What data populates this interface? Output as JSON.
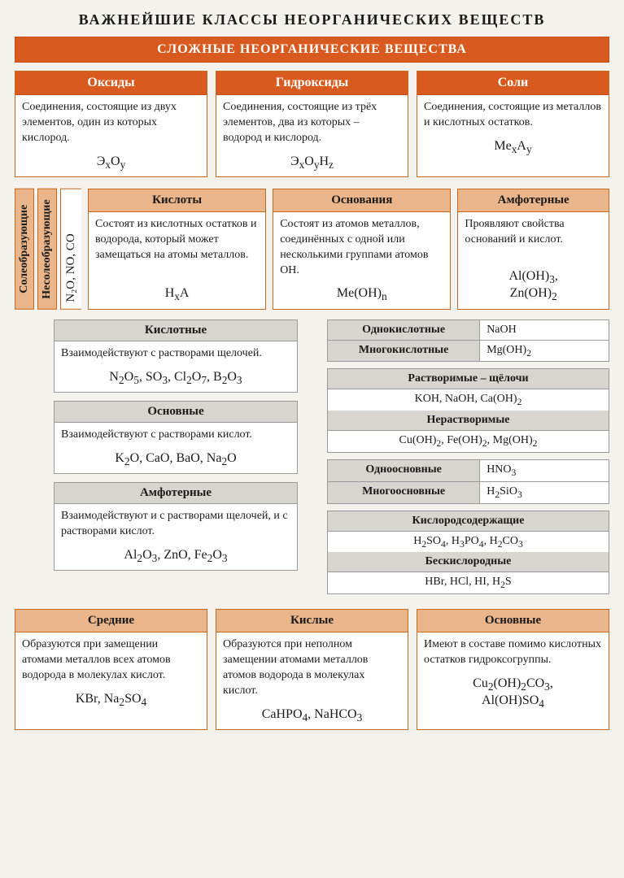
{
  "colors": {
    "accent": "#d85a1f",
    "accent_light": "#eab58a",
    "grey_hdr": "#d8d4d0",
    "border": "#c7691d",
    "bg": "#f5f2ee"
  },
  "title": "ВАЖНЕЙШИЕ КЛАССЫ НЕОРГАНИЧЕСКИХ ВЕЩЕСТВ",
  "main_header": "СЛОЖНЫЕ НЕОРГАНИЧЕСКИЕ ВЕЩЕСТВА",
  "top": [
    {
      "title": "Оксиды",
      "text": "Соединения, состоящие из двух элементов, один из которых кислород.",
      "formula": "Э<sub>x</sub>O<sub>y</sub>"
    },
    {
      "title": "Гидроксиды",
      "text": "Соединения, состоящие из трёх элементов, два из которых – водород и кислород.",
      "formula": "Э<sub>x</sub>O<sub>y</sub>H<sub>z</sub>"
    },
    {
      "title": "Соли",
      "text": "Соединения, состоящие из металлов и кислотных остатков.",
      "formula": "Me<sub>x</sub>A<sub>y</sub>"
    }
  ],
  "vtabs": {
    "left": "Солеобразующие",
    "right_label": "Несолеобразующие",
    "right_content": "N₂O, NO, CO"
  },
  "mid": [
    {
      "title": "Кислоты",
      "text": "Состоят из кислотных остатков и водорода, который может замещаться на атомы металлов.",
      "formula": "H<sub>x</sub>A"
    },
    {
      "title": "Основания",
      "text": "Состоят из атомов металлов, соединённых с одной или несколькими группами атомов OH.",
      "formula": "Me(OH)<sub>n</sub>"
    },
    {
      "title": "Амфотерные",
      "text": "Проявляют свойства оснований и кислот.",
      "formula": "Al(OH)<sub>3</sub>,<br>Zn(OH)<sub>2</sub>"
    }
  ],
  "oxide_types": [
    {
      "title": "Кислотные",
      "text": "Взаимодействуют с растворами щелочей.",
      "formula": "N<sub>2</sub>O<sub>5</sub>, SO<sub>3</sub>, Cl<sub>2</sub>O<sub>7</sub>, B<sub>2</sub>O<sub>3</sub>"
    },
    {
      "title": "Основные",
      "text": "Взаимодействуют с растворами кислот.",
      "formula": "K<sub>2</sub>O, CaO, BaO, Na<sub>2</sub>O"
    },
    {
      "title": "Амфотерные",
      "text": "Взаимодействуют и с растворами щелочей, и с растворами кислот.",
      "formula": "Al<sub>2</sub>O<sub>3</sub>, ZnO, Fe<sub>2</sub>O<sub>3</sub>"
    }
  ],
  "r_tables": [
    {
      "rows": [
        {
          "l": "Однокислотные",
          "r": "NaOH"
        },
        {
          "l": "Многокислотные",
          "r": "Mg(OH)<sub>2</sub>"
        }
      ]
    },
    {
      "sections": [
        {
          "head": "Растворимые – щёлочи",
          "body": "KOH, NaOH, Ca(OH)<sub>2</sub>"
        },
        {
          "head": "Нерастворимые",
          "body": "Cu(OH)<sub>2</sub>, Fe(OH)<sub>2</sub>, Mg(OH)<sub>2</sub>"
        }
      ]
    },
    {
      "rows": [
        {
          "l": "Одноосновные",
          "r": "HNO<sub>3</sub>"
        },
        {
          "l": "Многоосновные",
          "r": "H<sub>2</sub>SiO<sub>3</sub>"
        }
      ]
    },
    {
      "sections": [
        {
          "head": "Кислородсодержащие",
          "body": "H<sub>2</sub>SO<sub>4</sub>, H<sub>3</sub>PO<sub>4</sub>, H<sub>2</sub>CO<sub>3</sub>"
        },
        {
          "head": "Бескислородные",
          "body": "HBr, HCl, HI, H<sub>2</sub>S"
        }
      ]
    }
  ],
  "bottom": [
    {
      "title": "Средние",
      "text": "Образуются при замещении атомами металлов всех атомов водорода в молекулах кислот.",
      "formula": "KBr, Na<sub>2</sub>SO<sub>4</sub>"
    },
    {
      "title": "Кислые",
      "text": "Образуются при неполном замещении атомами металлов атомов водорода в молекулах кислот.",
      "formula": "CaHPO<sub>4</sub>, NaHCO<sub>3</sub>"
    },
    {
      "title": "Основные",
      "text": "Имеют в составе помимо кислотных остатков гидроксогруппы.",
      "formula": "Cu<sub>2</sub>(OH)<sub>2</sub>CO<sub>3</sub>,<br>Al(OH)SO<sub>4</sub>"
    }
  ]
}
